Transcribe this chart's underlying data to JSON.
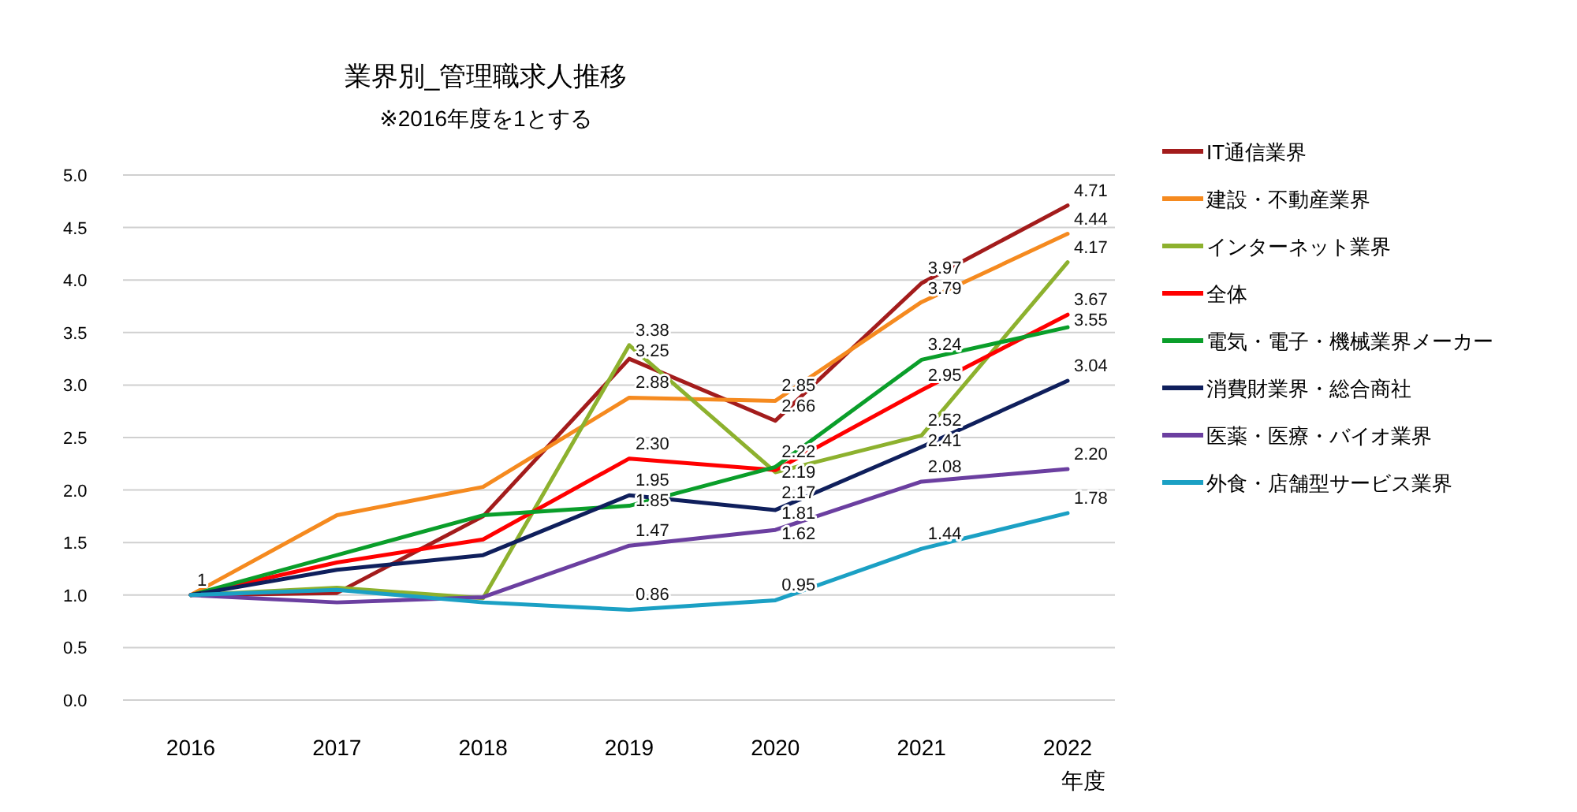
{
  "chart_data": {
    "type": "line",
    "title": "業界別_管理職求人推移",
    "subtitle": "※2016年度を1とする",
    "xlabel": "年度",
    "categories": [
      "2016",
      "2017",
      "2018",
      "2019",
      "2020",
      "2021",
      "2022"
    ],
    "ylim": [
      0,
      5
    ],
    "yticks": [
      {
        "value": 0,
        "label": "0.0"
      },
      {
        "value": 0.5,
        "label": "0.5"
      },
      {
        "value": 1,
        "label": "1.0"
      },
      {
        "value": 1.5,
        "label": "1.5"
      },
      {
        "value": 2,
        "label": "2.0"
      },
      {
        "value": 2.5,
        "label": "2.5"
      },
      {
        "value": 3,
        "label": "3.0"
      },
      {
        "value": 3.5,
        "label": "3.5"
      },
      {
        "value": 4,
        "label": "4.0"
      },
      {
        "value": 4.5,
        "label": "4.5"
      },
      {
        "value": 5,
        "label": "5.0"
      }
    ],
    "grid": "y",
    "legend": "right",
    "marker": "none",
    "line_style": "solid",
    "series": [
      {
        "name": "IT通信業界",
        "color": "#a31c1c",
        "values": [
          1,
          1.02,
          1.75,
          3.25,
          2.66,
          3.97,
          4.71
        ],
        "value_labels": [
          "1",
          null,
          null,
          "3.25",
          "2.66",
          "3.97",
          "4.71"
        ]
      },
      {
        "name": "建設・不動産業界",
        "color": "#f58a1f",
        "values": [
          1,
          1.76,
          2.03,
          2.88,
          2.85,
          3.79,
          4.44
        ],
        "value_labels": [
          null,
          null,
          null,
          "2.88",
          "2.85",
          "3.79",
          "4.44"
        ]
      },
      {
        "name": "インターネット業界",
        "color": "#8db12e",
        "values": [
          1,
          1.07,
          0.97,
          3.38,
          2.17,
          2.52,
          4.17
        ],
        "value_labels": [
          null,
          null,
          null,
          "3.38",
          "2.17",
          "2.52",
          "4.17"
        ]
      },
      {
        "name": "全体",
        "color": "#ff0000",
        "values": [
          1,
          1.31,
          1.53,
          2.3,
          2.19,
          2.95,
          3.67
        ],
        "value_labels": [
          null,
          null,
          null,
          "2.30",
          "2.19",
          "2.95",
          "3.67"
        ]
      },
      {
        "name": "電気・電子・機械業界メーカー",
        "color": "#0a9e2a",
        "values": [
          1,
          1.38,
          1.76,
          1.85,
          2.22,
          3.24,
          3.55
        ],
        "value_labels": [
          null,
          null,
          null,
          "1.85",
          "2.22",
          "3.24",
          "3.55"
        ]
      },
      {
        "name": "消費財業界・総合商社",
        "color": "#0f1f5c",
        "values": [
          1,
          1.24,
          1.38,
          1.95,
          1.81,
          2.41,
          3.04
        ],
        "value_labels": [
          null,
          null,
          null,
          "1.95",
          "1.81",
          "2.41",
          "3.04"
        ]
      },
      {
        "name": "医薬・医療・バイオ業界",
        "color": "#6b3fa0",
        "values": [
          1,
          0.93,
          0.98,
          1.47,
          1.62,
          2.08,
          2.2
        ],
        "value_labels": [
          null,
          null,
          null,
          "1.47",
          "1.62",
          "2.08",
          "2.20"
        ]
      },
      {
        "name": "外食・店舗型サービス業界",
        "color": "#1ba0c4",
        "values": [
          1,
          1.05,
          0.93,
          0.86,
          0.95,
          1.44,
          1.78
        ],
        "value_labels": [
          null,
          null,
          null,
          "0.86",
          "0.95",
          "1.44",
          "1.78"
        ]
      }
    ]
  }
}
